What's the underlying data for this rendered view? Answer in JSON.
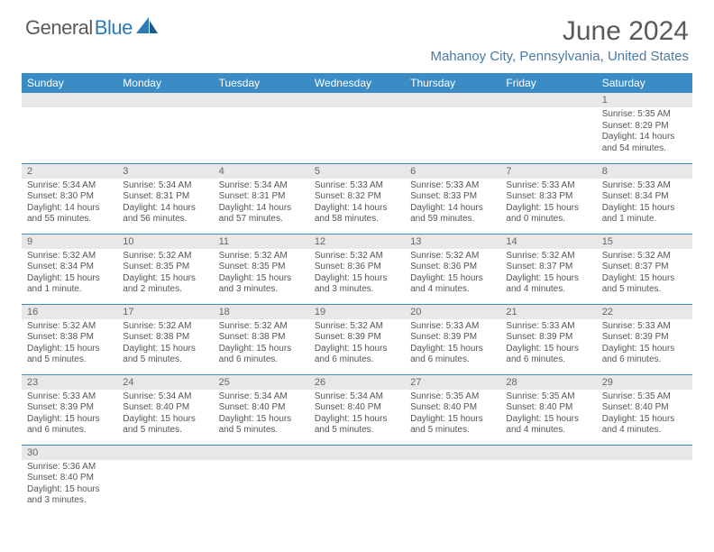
{
  "logo": {
    "text1": "General",
    "text2": "Blue"
  },
  "title": "June 2024",
  "location": "Mahanoy City, Pennsylvania, United States",
  "colors": {
    "header_bg": "#3b8bc4",
    "header_fg": "#ffffff",
    "daynum_bg": "#e8e8e8",
    "row_border": "#3b8bc4",
    "text": "#555555",
    "location": "#4a7aa5",
    "logo_gray": "#5a5a5a",
    "logo_blue": "#2a7ab8"
  },
  "day_headers": [
    "Sunday",
    "Monday",
    "Tuesday",
    "Wednesday",
    "Thursday",
    "Friday",
    "Saturday"
  ],
  "weeks": [
    [
      null,
      null,
      null,
      null,
      null,
      null,
      {
        "n": "1",
        "sunrise": "5:35 AM",
        "sunset": "8:29 PM",
        "daylight": "14 hours and 54 minutes."
      }
    ],
    [
      {
        "n": "2",
        "sunrise": "5:34 AM",
        "sunset": "8:30 PM",
        "daylight": "14 hours and 55 minutes."
      },
      {
        "n": "3",
        "sunrise": "5:34 AM",
        "sunset": "8:31 PM",
        "daylight": "14 hours and 56 minutes."
      },
      {
        "n": "4",
        "sunrise": "5:34 AM",
        "sunset": "8:31 PM",
        "daylight": "14 hours and 57 minutes."
      },
      {
        "n": "5",
        "sunrise": "5:33 AM",
        "sunset": "8:32 PM",
        "daylight": "14 hours and 58 minutes."
      },
      {
        "n": "6",
        "sunrise": "5:33 AM",
        "sunset": "8:33 PM",
        "daylight": "14 hours and 59 minutes."
      },
      {
        "n": "7",
        "sunrise": "5:33 AM",
        "sunset": "8:33 PM",
        "daylight": "15 hours and 0 minutes."
      },
      {
        "n": "8",
        "sunrise": "5:33 AM",
        "sunset": "8:34 PM",
        "daylight": "15 hours and 1 minute."
      }
    ],
    [
      {
        "n": "9",
        "sunrise": "5:32 AM",
        "sunset": "8:34 PM",
        "daylight": "15 hours and 1 minute."
      },
      {
        "n": "10",
        "sunrise": "5:32 AM",
        "sunset": "8:35 PM",
        "daylight": "15 hours and 2 minutes."
      },
      {
        "n": "11",
        "sunrise": "5:32 AM",
        "sunset": "8:35 PM",
        "daylight": "15 hours and 3 minutes."
      },
      {
        "n": "12",
        "sunrise": "5:32 AM",
        "sunset": "8:36 PM",
        "daylight": "15 hours and 3 minutes."
      },
      {
        "n": "13",
        "sunrise": "5:32 AM",
        "sunset": "8:36 PM",
        "daylight": "15 hours and 4 minutes."
      },
      {
        "n": "14",
        "sunrise": "5:32 AM",
        "sunset": "8:37 PM",
        "daylight": "15 hours and 4 minutes."
      },
      {
        "n": "15",
        "sunrise": "5:32 AM",
        "sunset": "8:37 PM",
        "daylight": "15 hours and 5 minutes."
      }
    ],
    [
      {
        "n": "16",
        "sunrise": "5:32 AM",
        "sunset": "8:38 PM",
        "daylight": "15 hours and 5 minutes."
      },
      {
        "n": "17",
        "sunrise": "5:32 AM",
        "sunset": "8:38 PM",
        "daylight": "15 hours and 5 minutes."
      },
      {
        "n": "18",
        "sunrise": "5:32 AM",
        "sunset": "8:38 PM",
        "daylight": "15 hours and 6 minutes."
      },
      {
        "n": "19",
        "sunrise": "5:32 AM",
        "sunset": "8:39 PM",
        "daylight": "15 hours and 6 minutes."
      },
      {
        "n": "20",
        "sunrise": "5:33 AM",
        "sunset": "8:39 PM",
        "daylight": "15 hours and 6 minutes."
      },
      {
        "n": "21",
        "sunrise": "5:33 AM",
        "sunset": "8:39 PM",
        "daylight": "15 hours and 6 minutes."
      },
      {
        "n": "22",
        "sunrise": "5:33 AM",
        "sunset": "8:39 PM",
        "daylight": "15 hours and 6 minutes."
      }
    ],
    [
      {
        "n": "23",
        "sunrise": "5:33 AM",
        "sunset": "8:39 PM",
        "daylight": "15 hours and 6 minutes."
      },
      {
        "n": "24",
        "sunrise": "5:34 AM",
        "sunset": "8:40 PM",
        "daylight": "15 hours and 5 minutes."
      },
      {
        "n": "25",
        "sunrise": "5:34 AM",
        "sunset": "8:40 PM",
        "daylight": "15 hours and 5 minutes."
      },
      {
        "n": "26",
        "sunrise": "5:34 AM",
        "sunset": "8:40 PM",
        "daylight": "15 hours and 5 minutes."
      },
      {
        "n": "27",
        "sunrise": "5:35 AM",
        "sunset": "8:40 PM",
        "daylight": "15 hours and 5 minutes."
      },
      {
        "n": "28",
        "sunrise": "5:35 AM",
        "sunset": "8:40 PM",
        "daylight": "15 hours and 4 minutes."
      },
      {
        "n": "29",
        "sunrise": "5:35 AM",
        "sunset": "8:40 PM",
        "daylight": "15 hours and 4 minutes."
      }
    ],
    [
      {
        "n": "30",
        "sunrise": "5:36 AM",
        "sunset": "8:40 PM",
        "daylight": "15 hours and 3 minutes."
      },
      null,
      null,
      null,
      null,
      null,
      null
    ]
  ],
  "labels": {
    "sunrise": "Sunrise:",
    "sunset": "Sunset:",
    "daylight": "Daylight:"
  }
}
